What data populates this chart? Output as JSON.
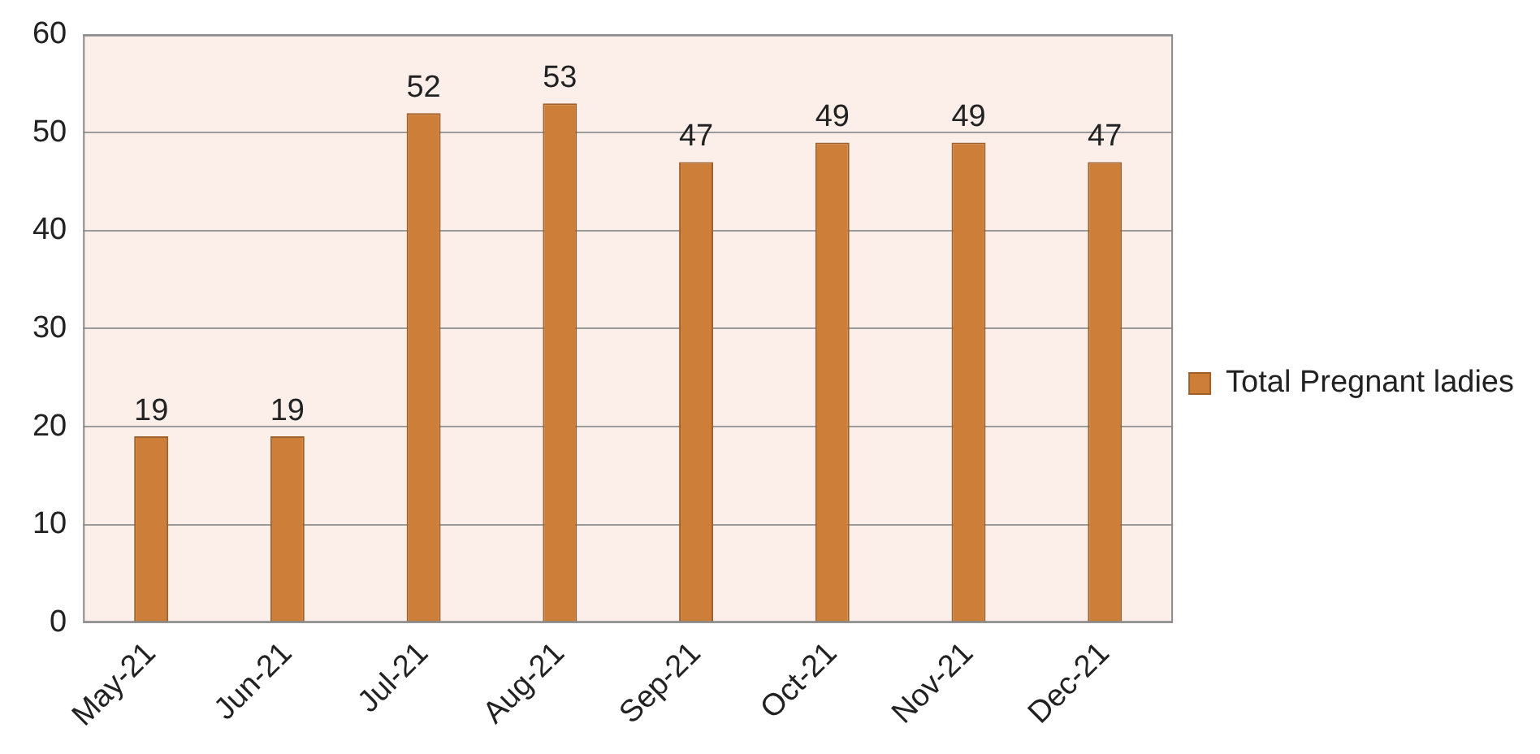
{
  "chart_data": {
    "type": "bar",
    "categories": [
      "May-21",
      "Jun-21",
      "Jul-21",
      "Aug-21",
      "Sep-21",
      "Oct-21",
      "Nov-21",
      "Dec-21"
    ],
    "series": [
      {
        "name": "Total Pregnant ladies",
        "color": "#cd7f3a",
        "values": [
          19,
          19,
          52,
          53,
          47,
          49,
          49,
          47
        ]
      }
    ],
    "ylim": [
      0,
      60
    ],
    "yticks": [
      0,
      10,
      20,
      30,
      40,
      50,
      60
    ],
    "grid": "y",
    "legend": "right",
    "data_labels": true
  }
}
